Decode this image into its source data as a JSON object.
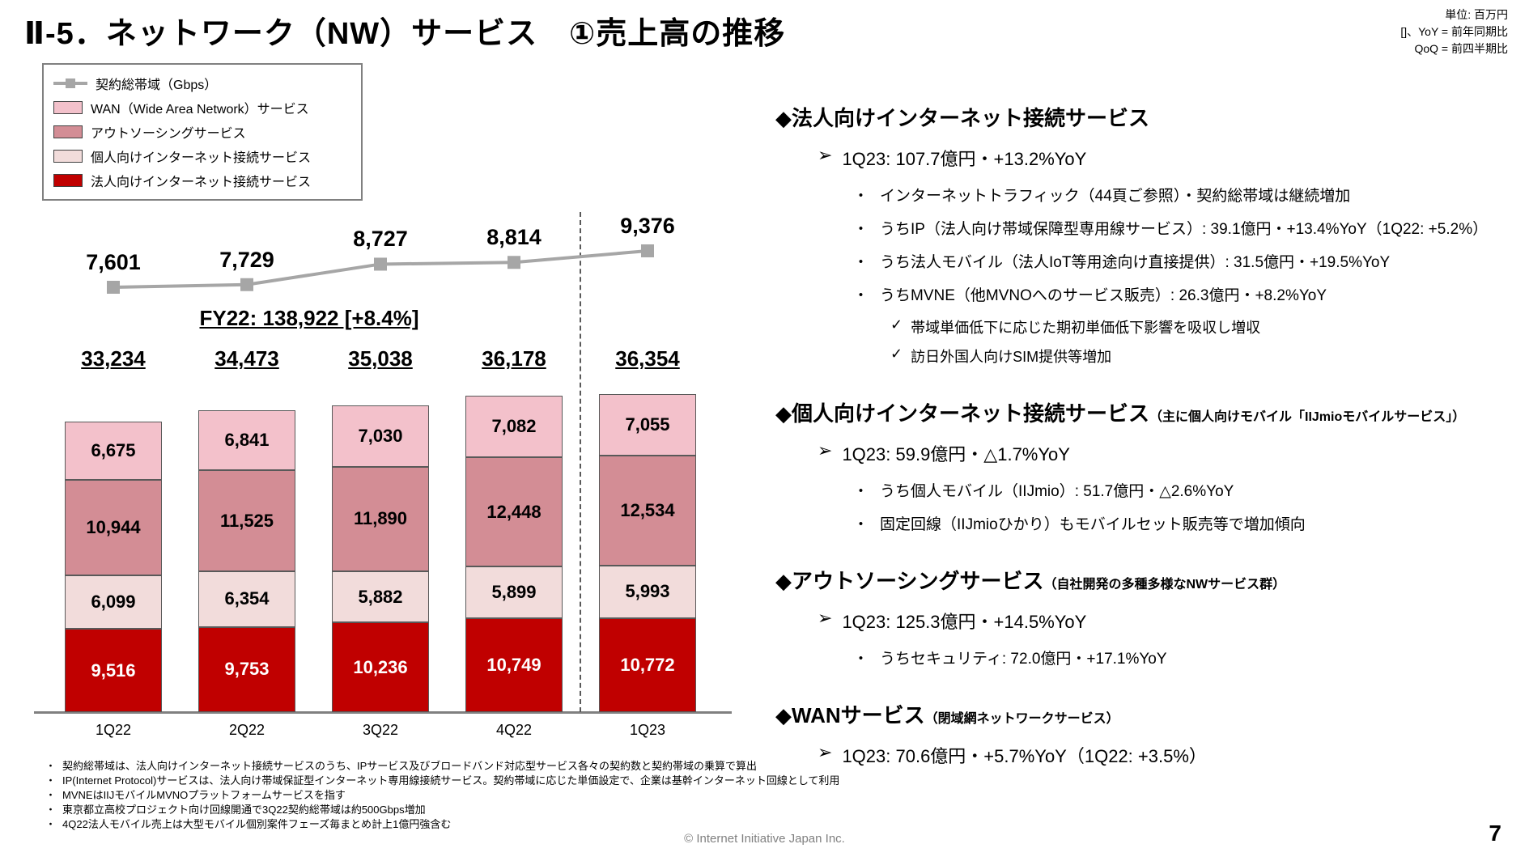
{
  "header": {
    "title": "Ⅱ-5．ネットワーク（NW）サービス　①売上高の推移",
    "unit_note_lines": [
      "単位: 百万円",
      "[]、YoY = 前年同期比",
      "QoQ = 前四半期比"
    ]
  },
  "markers": {
    "diamond": "◆",
    "arrow": "➢",
    "dot": "・",
    "check": "✓"
  },
  "legend": {
    "items": [
      {
        "label": "契約総帯域（Gbps）",
        "type": "line",
        "color": "#A6A6A6"
      },
      {
        "label": "WAN（Wide Area Network）サービス",
        "type": "box",
        "color": "#F3C1CB"
      },
      {
        "label": "アウトソーシングサービス",
        "type": "box",
        "color": "#D38D95"
      },
      {
        "label": "個人向けインターネット接続サービス",
        "type": "box",
        "color": "#F2DCDB"
      },
      {
        "label": "法人向けインターネット接続サービス",
        "type": "box",
        "color": "#C00000"
      }
    ]
  },
  "chart_data": {
    "type": "stacked-bar-with-line",
    "title": "ネットワークサービス売上高の推移（単位: 百万円）",
    "categories": [
      "1Q22",
      "2Q22",
      "3Q22",
      "4Q22",
      "1Q23"
    ],
    "series": [
      {
        "name": "法人向けインターネット接続サービス",
        "color": "#C00000",
        "label_color": "#FFFFFF",
        "values": [
          9516,
          9753,
          10236,
          10749,
          10772
        ]
      },
      {
        "name": "個人向けインターネット接続サービス",
        "color": "#F2DCDB",
        "label_color": "#000000",
        "values": [
          6099,
          6354,
          5882,
          5899,
          5993
        ]
      },
      {
        "name": "アウトソーシングサービス",
        "color": "#D38D95",
        "label_color": "#000000",
        "values": [
          10944,
          11525,
          11890,
          12448,
          12534
        ]
      },
      {
        "name": "WAN（Wide Area Network）サービス",
        "color": "#F3C1CB",
        "label_color": "#000000",
        "values": [
          6675,
          6841,
          7030,
          7082,
          7055
        ]
      }
    ],
    "totals": [
      33234,
      34473,
      35038,
      36178,
      36354
    ],
    "line_series": {
      "name": "契約総帯域（Gbps）",
      "color": "#A6A6A6",
      "values": [
        7601,
        7729,
        8727,
        8814,
        9376
      ]
    },
    "fy_note": "FY22: 138,922 [+8.4%]",
    "legend_position": "top-left",
    "grid": false
  },
  "sections": [
    {
      "heading": "法人向けインターネット接続サービス",
      "suffix": "",
      "items": [
        {
          "marker": "arrow",
          "text": "1Q23: 107.7億円・+13.2%YoY"
        },
        {
          "marker": "dot",
          "text": "インターネットトラフィック（44頁ご参照）・契約総帯域は継続増加"
        },
        {
          "marker": "dot",
          "text": "うちIP（法人向け帯域保障型専用線サービス）: 39.1億円・+13.4%YoY（1Q22: +5.2%）"
        },
        {
          "marker": "dot",
          "text": "うち法人モバイル（法人IoT等用途向け直接提供）: 31.5億円・+19.5%YoY"
        },
        {
          "marker": "dot",
          "text": "うちMVNE（他MVNOへのサービス販売）: 26.3億円・+8.2%YoY"
        },
        {
          "marker": "check",
          "text": "帯域単価低下に応じた期初単価低下影響を吸収し増収"
        },
        {
          "marker": "check",
          "text": "訪日外国人向けSIM提供等増加"
        }
      ]
    },
    {
      "heading": "個人向けインターネット接続サービス",
      "suffix": "（主に個人向けモバイル「IIJmioモバイルサービス」）",
      "items": [
        {
          "marker": "arrow",
          "text": "1Q23: 59.9億円・△1.7%YoY"
        },
        {
          "marker": "dot",
          "text": "うち個人モバイル（IIJmio）: 51.7億円・△2.6%YoY"
        },
        {
          "marker": "dot",
          "text": "固定回線（IIJmioひかり）もモバイルセット販売等で増加傾向"
        }
      ]
    },
    {
      "heading": "アウトソーシングサービス",
      "suffix": "（自社開発の多種多様なNWサービス群）",
      "items": [
        {
          "marker": "arrow",
          "text": "1Q23: 125.3億円・+14.5%YoY"
        },
        {
          "marker": "dot",
          "text": "うちセキュリティ: 72.0億円・+17.1%YoY"
        }
      ]
    },
    {
      "heading": "WANサービス",
      "suffix": "（閉域網ネットワークサービス）",
      "items": [
        {
          "marker": "arrow",
          "text": "1Q23: 70.6億円・+5.7%YoY（1Q22: +3.5%）"
        }
      ]
    }
  ],
  "footnotes": [
    "契約総帯域は、法人向けインターネット接続サービスのうち、IPサービス及びブロードバンド対応型サービス各々の契約数と契約帯域の乗算で算出",
    "IP(Internet Protocol)サービスは、法人向け帯域保証型インターネット専用線接続サービス。契約帯域に応じた単価設定で、企業は基幹インターネット回線として利用",
    "MVNEはIIJモバイルMVNOプラットフォームサービスを指す",
    "東京都立高校プロジェクト向け回線開通で3Q22契約総帯域は約500Gbps増加",
    "4Q22法人モバイル売上は大型モバイル個別案件フェーズ毎まとめ計上1億円強含む"
  ],
  "footer": {
    "copyright": "© Internet Initiative Japan Inc.",
    "page_number": "7"
  }
}
